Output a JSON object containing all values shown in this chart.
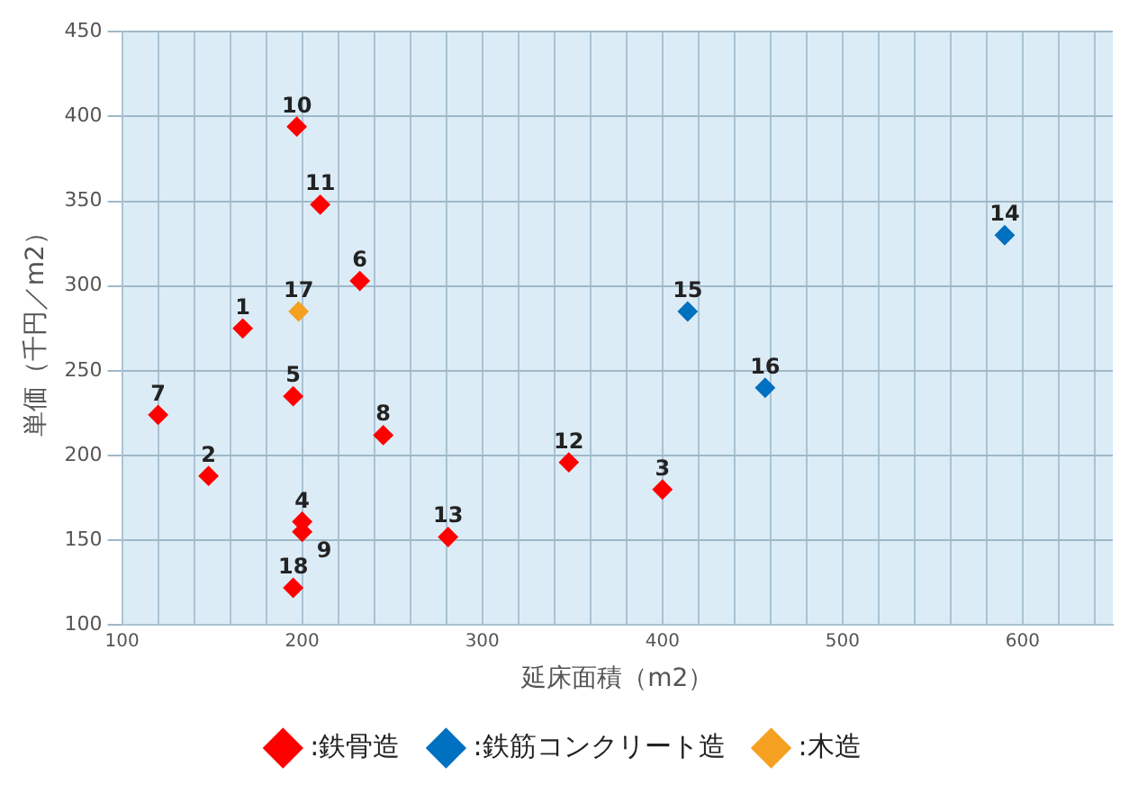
{
  "chart_data": {
    "type": "scatter",
    "xlabel": "延床面積（m2）",
    "ylabel": "単価（千円／m2）",
    "xlim": [
      100,
      650
    ],
    "ylim": [
      100,
      450
    ],
    "xticks": [
      100,
      {
        "value": 120,
        "label": null
      },
      {
        "value": 140,
        "label": null
      },
      {
        "value": 160,
        "label": null
      },
      {
        "value": 180,
        "label": null
      },
      200,
      {
        "value": 220,
        "label": null
      },
      {
        "value": 240,
        "label": null
      },
      {
        "value": 260,
        "label": null
      },
      {
        "value": 280,
        "label": null
      },
      300,
      {
        "value": 320,
        "label": null
      },
      {
        "value": 340,
        "label": null
      },
      {
        "value": 360,
        "label": null
      },
      {
        "value": 380,
        "label": null
      },
      400,
      {
        "value": 420,
        "label": null
      },
      {
        "value": 440,
        "label": null
      },
      {
        "value": 460,
        "label": null
      },
      {
        "value": 480,
        "label": null
      },
      500,
      {
        "value": 520,
        "label": null
      },
      {
        "value": 540,
        "label": null
      },
      {
        "value": 560,
        "label": null
      },
      {
        "value": 580,
        "label": null
      },
      600,
      {
        "value": 620,
        "label": null
      },
      {
        "value": 640,
        "label": null
      }
    ],
    "yticks": [
      100,
      150,
      200,
      250,
      300,
      350,
      400,
      450
    ],
    "grid": true,
    "legend": "bottom",
    "marker": "diamond",
    "series": [
      {
        "name": ":鉄骨造",
        "color": "#ff0000",
        "x": [
          167,
          148,
          400,
          200,
          195,
          232,
          120,
          245,
          200,
          197,
          210,
          348,
          281,
          195
        ],
        "values": [
          275,
          188,
          180,
          161,
          235,
          303,
          224,
          212,
          155,
          394,
          348,
          196,
          152,
          122
        ]
      },
      {
        "name": ":鉄筋コンクリート造",
        "color": "#0070c0",
        "x": [
          590,
          414,
          457
        ],
        "values": [
          330,
          285,
          240
        ]
      },
      {
        "name": ":木造",
        "color": "#f5a020",
        "x": [
          198
        ],
        "values": [
          285
        ]
      }
    ],
    "annotations": [
      {
        "text": "1",
        "x": 167,
        "y": 275
      },
      {
        "text": "2",
        "x": 148,
        "y": 188
      },
      {
        "text": "3",
        "x": 400,
        "y": 180
      },
      {
        "text": "4",
        "x": 200,
        "y": 161
      },
      {
        "text": "5",
        "x": 195,
        "y": 235
      },
      {
        "text": "6",
        "x": 232,
        "y": 303
      },
      {
        "text": "7",
        "x": 120,
        "y": 224
      },
      {
        "text": "8",
        "x": 245,
        "y": 212
      },
      {
        "text": "9",
        "x": 200,
        "y": 155
      },
      {
        "text": "10",
        "x": 197,
        "y": 394
      },
      {
        "text": "11",
        "x": 210,
        "y": 348
      },
      {
        "text": "12",
        "x": 348,
        "y": 196
      },
      {
        "text": "13",
        "x": 281,
        "y": 152
      },
      {
        "text": "14",
        "x": 590,
        "y": 330
      },
      {
        "text": "15",
        "x": 414,
        "y": 285
      },
      {
        "text": "16",
        "x": 457,
        "y": 240
      },
      {
        "text": "17",
        "x": 198,
        "y": 285
      },
      {
        "text": "18",
        "x": 195,
        "y": 122
      }
    ]
  }
}
